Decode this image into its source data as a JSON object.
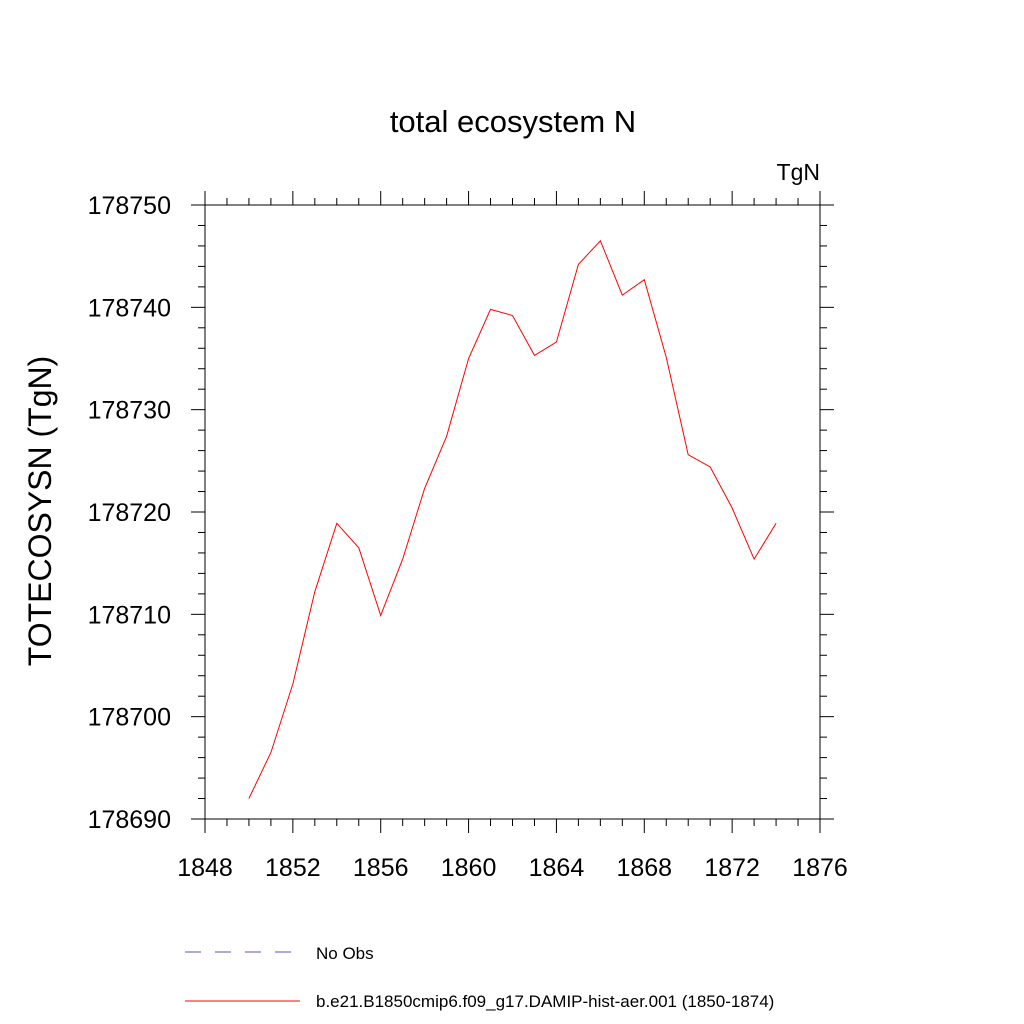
{
  "chart_data": {
    "type": "line",
    "title": "total ecosystem N",
    "units_label": "TgN",
    "ylabel": "TOTECOSYSN  (TgN)",
    "xlabel": "",
    "xlim": [
      1848,
      1876
    ],
    "ylim": [
      178690,
      178750
    ],
    "x_ticks": [
      1848,
      1852,
      1856,
      1860,
      1864,
      1868,
      1872,
      1876
    ],
    "y_ticks": [
      178690,
      178700,
      178710,
      178720,
      178730,
      178740,
      178750
    ],
    "x_tick_labels": [
      "1848",
      "1852",
      "1856",
      "1860",
      "1864",
      "1868",
      "1872",
      "1876"
    ],
    "y_tick_labels": [
      "178690",
      "178700",
      "178710",
      "178720",
      "178730",
      "178740",
      "178750"
    ],
    "grid": false,
    "series": [
      {
        "name": "b.e21.B1850cmip6.f09_g17.DAMIP-hist-aer.001 (1850-1874)",
        "color": "#ff0000",
        "x": [
          1850,
          1851,
          1852,
          1853,
          1854,
          1855,
          1856,
          1857,
          1858,
          1859,
          1860,
          1861,
          1862,
          1863,
          1864,
          1865,
          1866,
          1867,
          1868,
          1869,
          1870,
          1871,
          1872,
          1873,
          1874
        ],
        "y": [
          178692.0,
          178696.5,
          178703.2,
          178712.2,
          178718.9,
          178716.5,
          178709.9,
          178715.4,
          178722.3,
          178727.4,
          178735.0,
          178739.8,
          178739.2,
          178735.3,
          178736.6,
          178744.2,
          178746.5,
          178741.2,
          178742.7,
          178735.1,
          178725.6,
          178724.4,
          178720.4,
          178715.4,
          178718.9
        ]
      }
    ],
    "legend": {
      "placement": "bottom",
      "entries": [
        {
          "label": "No Obs",
          "color": "#5a5ab4",
          "style": "dashed"
        },
        {
          "label": "b.e21.B1850cmip6.f09_g17.DAMIP-hist-aer.001 (1850-1874)",
          "color": "#ff0000",
          "style": "solid"
        }
      ]
    }
  }
}
